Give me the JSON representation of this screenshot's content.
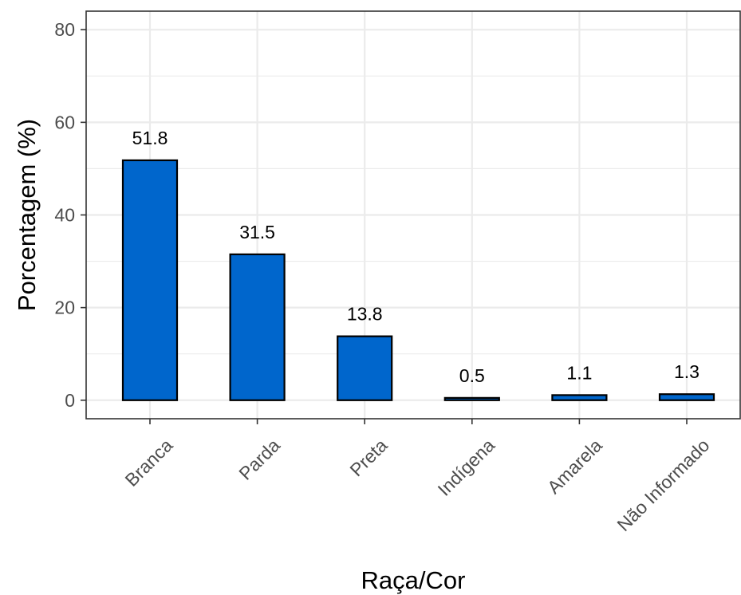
{
  "chart_data": {
    "type": "bar",
    "categories": [
      "Branca",
      "Parda",
      "Preta",
      "Indígena",
      "Amarela",
      "Não Informado"
    ],
    "values": [
      51.8,
      31.5,
      13.8,
      0.5,
      1.1,
      1.3
    ],
    "data_labels": [
      "51.8",
      "31.5",
      "13.8",
      "0.5",
      "1.1",
      "1.3"
    ],
    "xlabel": "Raça/Cor",
    "ylabel": "Porcentagem (%)",
    "ylim": [
      -4,
      84
    ],
    "yticks": [
      0,
      20,
      40,
      60,
      80
    ],
    "grid": true,
    "bar_color": "#0066cc",
    "bar_edge_color": "#000000",
    "panel_border_color": "#333333",
    "grid_color": "#ebebeb"
  }
}
